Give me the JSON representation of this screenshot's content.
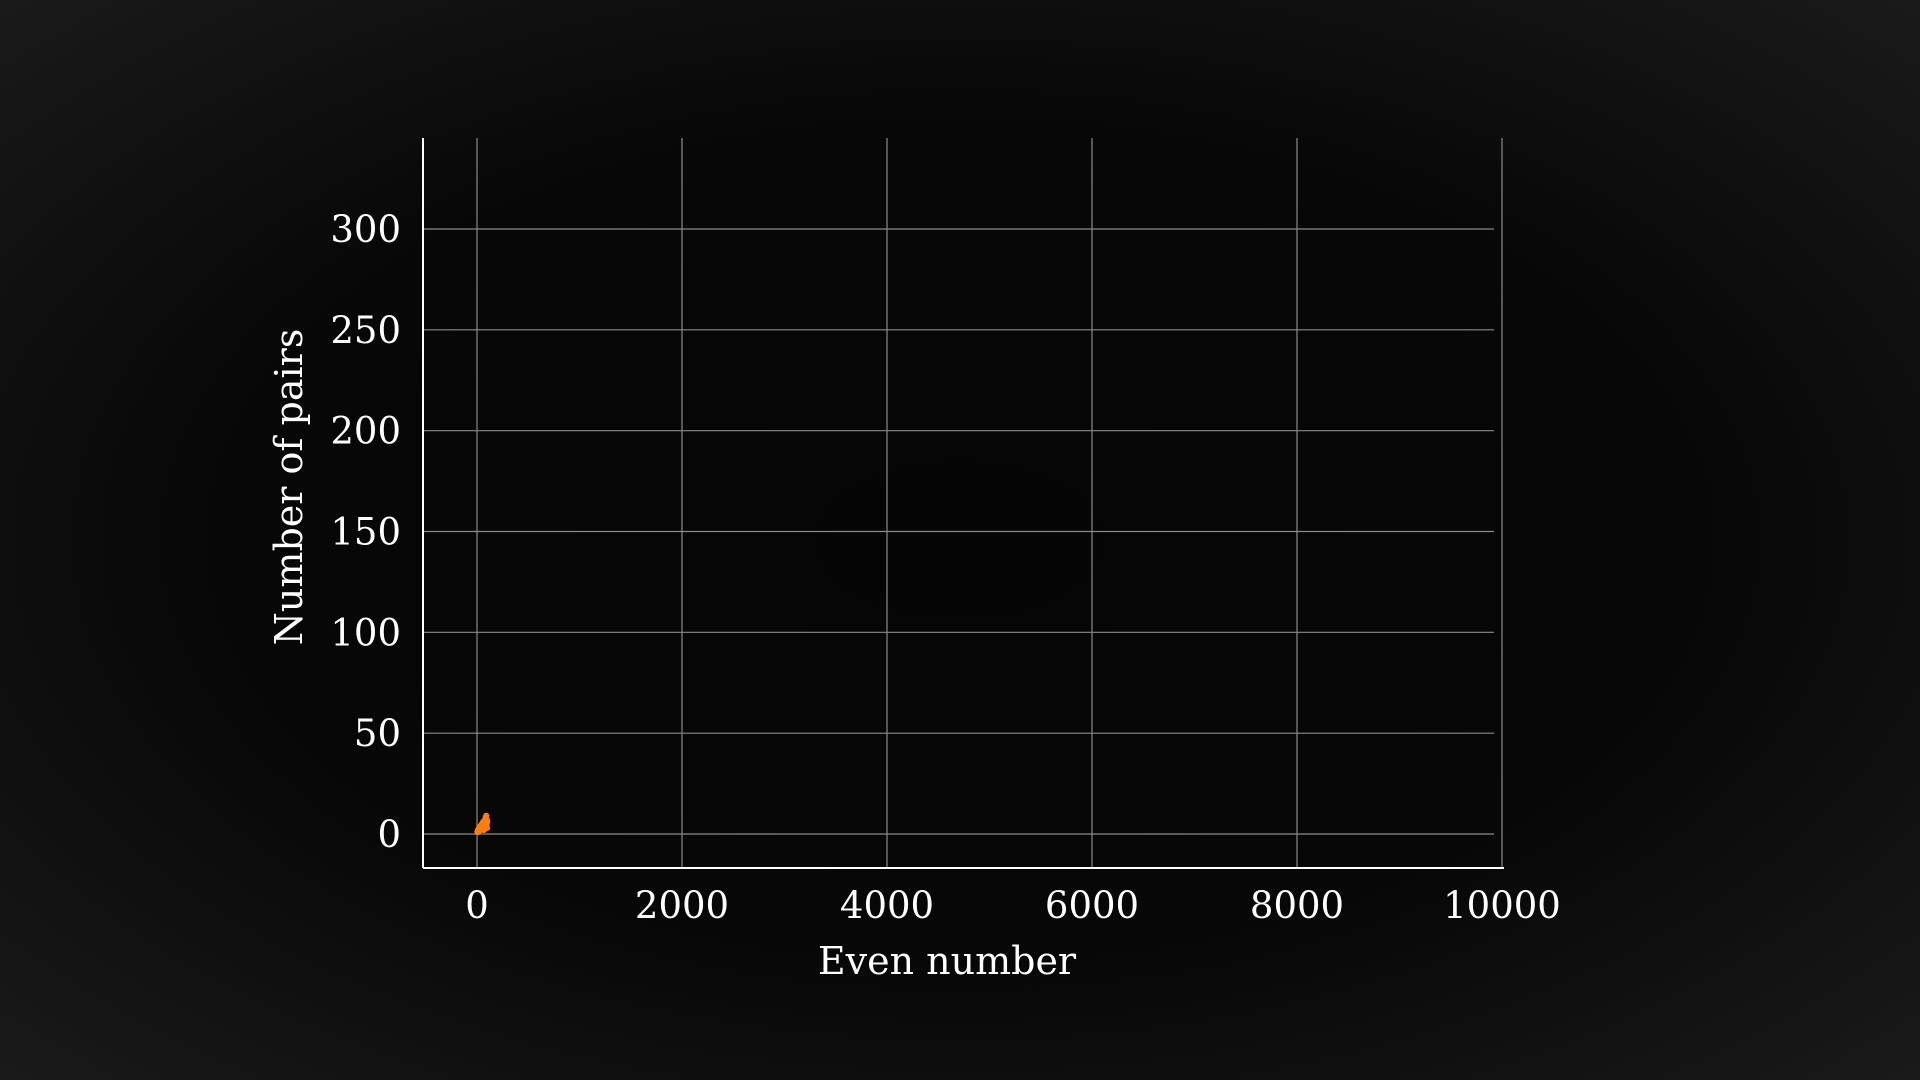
{
  "chart_data": {
    "type": "scatter",
    "title": "",
    "xlabel": "Even number",
    "ylabel": "Number of pairs",
    "xlim": [
      0,
      10000
    ],
    "ylim": [
      0,
      300
    ],
    "xticks": [
      "0",
      "2000",
      "4000",
      "6000",
      "8000",
      "10000"
    ],
    "yticks": [
      "0",
      "50",
      "100",
      "150",
      "200",
      "250",
      "300"
    ],
    "grid": true,
    "point_color": "#ff7f0e",
    "axis_color": "#ffffff",
    "grid_color": "#8a8a8a",
    "background_color": "#000000",
    "series": [
      {
        "x": [
          4,
          6,
          8,
          10,
          12,
          14,
          16,
          18,
          20,
          22,
          24,
          26,
          28,
          30,
          32,
          34,
          36,
          38,
          40,
          42,
          44,
          46,
          48,
          50,
          52,
          54,
          56,
          58,
          60,
          62,
          64,
          66,
          68,
          70,
          72,
          74,
          76,
          78,
          80,
          82,
          84,
          86,
          88,
          90,
          92,
          94,
          96,
          98,
          100
        ],
        "y": [
          1,
          1,
          1,
          2,
          1,
          2,
          2,
          2,
          2,
          3,
          3,
          3,
          2,
          3,
          2,
          4,
          4,
          2,
          3,
          4,
          3,
          4,
          5,
          4,
          3,
          5,
          3,
          4,
          6,
          3,
          5,
          6,
          2,
          5,
          6,
          5,
          5,
          7,
          4,
          5,
          8,
          5,
          4,
          9,
          4,
          5,
          7,
          3,
          6
        ]
      }
    ]
  }
}
